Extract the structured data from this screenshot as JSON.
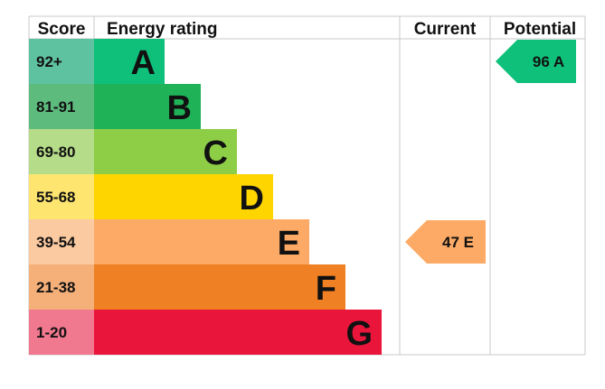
{
  "chart_data": {
    "type": "bar",
    "headers": {
      "score": "Score",
      "rating": "Energy rating",
      "current": "Current",
      "potential": "Potential"
    },
    "bands": [
      {
        "label": "A",
        "range": "92+",
        "score_color": "#5ec2a0",
        "bar_color": "#0fc07a",
        "length": 1
      },
      {
        "label": "B",
        "range": "81-91",
        "score_color": "#5dbb7e",
        "bar_color": "#1fb257",
        "length": 2
      },
      {
        "label": "C",
        "range": "69-80",
        "score_color": "#b5dc88",
        "bar_color": "#8dce46",
        "length": 3
      },
      {
        "label": "D",
        "range": "55-68",
        "score_color": "#fde56f",
        "bar_color": "#ffd500",
        "length": 4
      },
      {
        "label": "E",
        "range": "39-54",
        "score_color": "#fbcaa0",
        "bar_color": "#fcaa65",
        "length": 5
      },
      {
        "label": "F",
        "range": "21-38",
        "score_color": "#f5b07a",
        "bar_color": "#ef8023",
        "length": 6
      },
      {
        "label": "G",
        "range": "1-20",
        "score_color": "#f0788f",
        "bar_color": "#e9153b",
        "length": 7
      }
    ],
    "current": {
      "value": 47,
      "band": "E",
      "text": "47 E",
      "color": "#fcaa65"
    },
    "potential": {
      "value": 96,
      "band": "A",
      "text": "96 A",
      "color": "#0fc07a"
    }
  }
}
